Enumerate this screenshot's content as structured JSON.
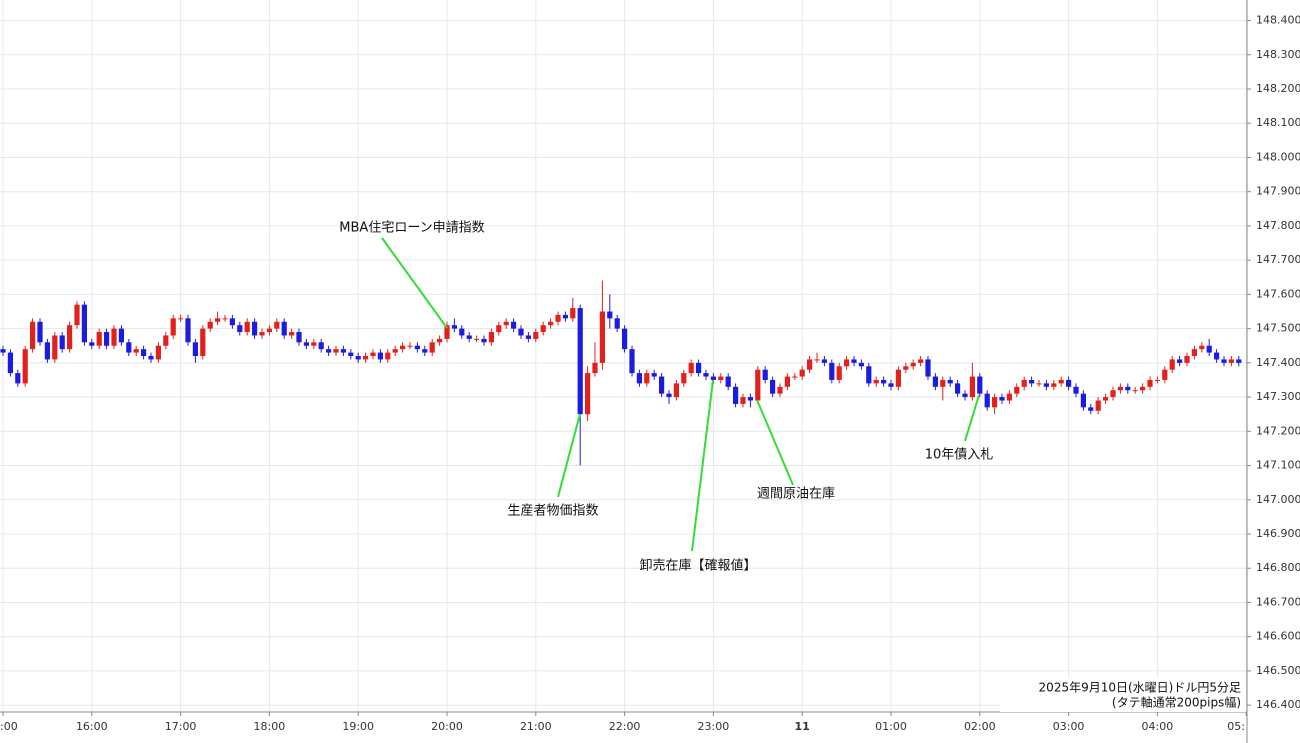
{
  "chart_data": {
    "type": "candlestick",
    "footer": [
      "2025年9月10日(水曜日)ドル円5分足",
      "(タテ軸通常200pips幅)"
    ],
    "annotations": [
      {
        "text": "MBA住宅ローン申請指数"
      },
      {
        "text": "生産者物価指数"
      },
      {
        "text": "卸売在庫【確報値】"
      },
      {
        "text": "週間原油在庫"
      },
      {
        "text": "10年債入札"
      }
    ],
    "up_color": "#e3211c",
    "down_color": "#1c1ce0",
    "annotation_color": "#33dd33",
    "grid": true,
    "ylim": [
      146.38,
      148.46
    ],
    "yticks": [
      {
        "value": 148.4,
        "label": "148.400"
      },
      {
        "value": 148.3,
        "label": "148.300"
      },
      {
        "value": 148.2,
        "label": "148.200"
      },
      {
        "value": 148.1,
        "label": "148.100"
      },
      {
        "value": 148.0,
        "label": "148.000"
      },
      {
        "value": 147.9,
        "label": "147.900"
      },
      {
        "value": 147.8,
        "label": "147.800"
      },
      {
        "value": 147.7,
        "label": "147.700"
      },
      {
        "value": 147.6,
        "label": "147.600"
      },
      {
        "value": 147.5,
        "label": "147.500"
      },
      {
        "value": 147.4,
        "label": "147.400"
      },
      {
        "value": 147.3,
        "label": "147.300"
      },
      {
        "value": 147.2,
        "label": "147.200"
      },
      {
        "value": 147.1,
        "label": "147.100"
      },
      {
        "value": 147.0,
        "label": "147.000"
      },
      {
        "value": 146.9,
        "label": "146.900"
      },
      {
        "value": 146.8,
        "label": "146.800"
      },
      {
        "value": 146.7,
        "label": "146.700"
      },
      {
        "value": 146.6,
        "label": "146.600"
      },
      {
        "value": 146.5,
        "label": "146.500"
      },
      {
        "value": 146.4,
        "label": "146.400"
      }
    ],
    "xticks": [
      {
        "value": "15:00",
        "label": ":00"
      },
      {
        "value": "16:00",
        "label": "16:00"
      },
      {
        "value": "17:00",
        "label": "17:00"
      },
      {
        "value": "18:00",
        "label": "18:00"
      },
      {
        "value": "19:00",
        "label": "19:00"
      },
      {
        "value": "20:00",
        "label": "20:00"
      },
      {
        "value": "21:00",
        "label": "21:00"
      },
      {
        "value": "22:00",
        "label": "22:00"
      },
      {
        "value": "23:00",
        "label": "23:00"
      },
      {
        "value": "00:00",
        "label": "11"
      },
      {
        "value": "01:00",
        "label": "01:00"
      },
      {
        "value": "02:00",
        "label": "02:00"
      },
      {
        "value": "03:00",
        "label": "03:00"
      },
      {
        "value": "04:00",
        "label": "04:00"
      },
      {
        "value": "05:00",
        "label": "05:"
      }
    ],
    "x": [
      "15:00",
      "15:05",
      "15:10",
      "15:15",
      "15:20",
      "15:25",
      "15:30",
      "15:35",
      "15:40",
      "15:45",
      "15:50",
      "15:55",
      "16:00",
      "16:05",
      "16:10",
      "16:15",
      "16:20",
      "16:25",
      "16:30",
      "16:35",
      "16:40",
      "16:45",
      "16:50",
      "16:55",
      "17:00",
      "17:05",
      "17:10",
      "17:15",
      "17:20",
      "17:25",
      "17:30",
      "17:35",
      "17:40",
      "17:45",
      "17:50",
      "17:55",
      "18:00",
      "18:05",
      "18:10",
      "18:15",
      "18:20",
      "18:25",
      "18:30",
      "18:35",
      "18:40",
      "18:45",
      "18:50",
      "18:55",
      "19:00",
      "19:05",
      "19:10",
      "19:15",
      "19:20",
      "19:25",
      "19:30",
      "19:35",
      "19:40",
      "19:45",
      "19:50",
      "19:55",
      "20:00",
      "20:05",
      "20:10",
      "20:15",
      "20:20",
      "20:25",
      "20:30",
      "20:35",
      "20:40",
      "20:45",
      "20:50",
      "20:55",
      "21:00",
      "21:05",
      "21:10",
      "21:15",
      "21:20",
      "21:25",
      "21:30",
      "21:35",
      "21:40",
      "21:45",
      "21:50",
      "21:55",
      "22:00",
      "22:05",
      "22:10",
      "22:15",
      "22:20",
      "22:25",
      "22:30",
      "22:35",
      "22:40",
      "22:45",
      "22:50",
      "22:55",
      "23:00",
      "23:05",
      "23:10",
      "23:15",
      "23:20",
      "23:25",
      "23:30",
      "23:35",
      "23:40",
      "23:45",
      "23:50",
      "23:55",
      "00:00",
      "00:05",
      "00:10",
      "00:15",
      "00:20",
      "00:25",
      "00:30",
      "00:35",
      "00:40",
      "00:45",
      "00:50",
      "00:55",
      "01:00",
      "01:05",
      "01:10",
      "01:15",
      "01:20",
      "01:25",
      "01:30",
      "01:35",
      "01:40",
      "01:45",
      "01:50",
      "01:55",
      "02:00",
      "02:05",
      "02:10",
      "02:15",
      "02:20",
      "02:25",
      "02:30",
      "02:35",
      "02:40",
      "02:45",
      "02:50",
      "02:55",
      "03:00",
      "03:05",
      "03:10",
      "03:15",
      "03:20",
      "03:25",
      "03:30",
      "03:35",
      "03:40",
      "03:45",
      "03:50",
      "03:55",
      "04:00",
      "04:05",
      "04:10",
      "04:15",
      "04:20",
      "04:25",
      "04:30",
      "04:35",
      "04:40",
      "04:45",
      "04:50",
      "04:55"
    ],
    "candles": [
      [
        147.44,
        147.45,
        147.42,
        147.43
      ],
      [
        147.43,
        147.44,
        147.36,
        147.37
      ],
      [
        147.37,
        147.38,
        147.33,
        147.34
      ],
      [
        147.34,
        147.45,
        147.33,
        147.44
      ],
      [
        147.44,
        147.53,
        147.43,
        147.52
      ],
      [
        147.52,
        147.53,
        147.45,
        147.46
      ],
      [
        147.46,
        147.47,
        147.4,
        147.41
      ],
      [
        147.41,
        147.49,
        147.4,
        147.48
      ],
      [
        147.48,
        147.49,
        147.43,
        147.44
      ],
      [
        147.44,
        147.52,
        147.43,
        147.51
      ],
      [
        147.51,
        147.58,
        147.5,
        147.57
      ],
      [
        147.57,
        147.58,
        147.45,
        147.46
      ],
      [
        147.46,
        147.47,
        147.44,
        147.45
      ],
      [
        147.45,
        147.5,
        147.44,
        147.49
      ],
      [
        147.49,
        147.5,
        147.44,
        147.45
      ],
      [
        147.45,
        147.51,
        147.44,
        147.5
      ],
      [
        147.5,
        147.51,
        147.45,
        147.46
      ],
      [
        147.46,
        147.47,
        147.42,
        147.43
      ],
      [
        147.43,
        147.45,
        147.42,
        147.44
      ],
      [
        147.44,
        147.45,
        147.41,
        147.42
      ],
      [
        147.42,
        147.43,
        147.4,
        147.41
      ],
      [
        147.41,
        147.46,
        147.4,
        147.45
      ],
      [
        147.45,
        147.49,
        147.44,
        147.48
      ],
      [
        147.48,
        147.54,
        147.47,
        147.53
      ],
      [
        147.53,
        147.54,
        147.52,
        147.53
      ],
      [
        147.53,
        147.54,
        147.45,
        147.46
      ],
      [
        147.46,
        147.47,
        147.4,
        147.42
      ],
      [
        147.42,
        147.51,
        147.41,
        147.5
      ],
      [
        147.5,
        147.53,
        147.49,
        147.52
      ],
      [
        147.52,
        147.55,
        147.51,
        147.53
      ],
      [
        147.53,
        147.54,
        147.52,
        147.53
      ],
      [
        147.53,
        147.54,
        147.5,
        147.51
      ],
      [
        147.51,
        147.52,
        147.48,
        147.49
      ],
      [
        147.49,
        147.53,
        147.48,
        147.52
      ],
      [
        147.52,
        147.53,
        147.47,
        147.48
      ],
      [
        147.48,
        147.5,
        147.47,
        147.49
      ],
      [
        147.49,
        147.51,
        147.48,
        147.5
      ],
      [
        147.5,
        147.53,
        147.49,
        147.52
      ],
      [
        147.52,
        147.53,
        147.47,
        147.48
      ],
      [
        147.48,
        147.5,
        147.47,
        147.49
      ],
      [
        147.49,
        147.5,
        147.45,
        147.46
      ],
      [
        147.46,
        147.47,
        147.44,
        147.45
      ],
      [
        147.45,
        147.47,
        147.44,
        147.46
      ],
      [
        147.46,
        147.47,
        147.43,
        147.44
      ],
      [
        147.44,
        147.45,
        147.42,
        147.43
      ],
      [
        147.43,
        147.45,
        147.42,
        147.44
      ],
      [
        147.44,
        147.45,
        147.42,
        147.43
      ],
      [
        147.43,
        147.44,
        147.41,
        147.42
      ],
      [
        147.42,
        147.43,
        147.4,
        147.41
      ],
      [
        147.41,
        147.43,
        147.4,
        147.42
      ],
      [
        147.42,
        147.44,
        147.41,
        147.43
      ],
      [
        147.43,
        147.44,
        147.4,
        147.41
      ],
      [
        147.41,
        147.44,
        147.4,
        147.43
      ],
      [
        147.43,
        147.45,
        147.42,
        147.44
      ],
      [
        147.44,
        147.46,
        147.43,
        147.45
      ],
      [
        147.45,
        147.46,
        147.44,
        147.45
      ],
      [
        147.45,
        147.46,
        147.43,
        147.44
      ],
      [
        147.44,
        147.45,
        147.42,
        147.43
      ],
      [
        147.43,
        147.47,
        147.42,
        147.46
      ],
      [
        147.46,
        147.48,
        147.45,
        147.47
      ],
      [
        147.47,
        147.52,
        147.46,
        147.51
      ],
      [
        147.51,
        147.53,
        147.49,
        147.5
      ],
      [
        147.5,
        147.51,
        147.47,
        147.48
      ],
      [
        147.48,
        147.49,
        147.46,
        147.47
      ],
      [
        147.47,
        147.48,
        147.46,
        147.47
      ],
      [
        147.47,
        147.48,
        147.45,
        147.46
      ],
      [
        147.46,
        147.5,
        147.45,
        147.49
      ],
      [
        147.49,
        147.52,
        147.48,
        147.51
      ],
      [
        147.51,
        147.53,
        147.5,
        147.52
      ],
      [
        147.52,
        147.53,
        147.49,
        147.5
      ],
      [
        147.5,
        147.51,
        147.47,
        147.48
      ],
      [
        147.48,
        147.49,
        147.46,
        147.47
      ],
      [
        147.47,
        147.5,
        147.46,
        147.49
      ],
      [
        147.49,
        147.52,
        147.48,
        147.51
      ],
      [
        147.51,
        147.53,
        147.5,
        147.52
      ],
      [
        147.52,
        147.55,
        147.51,
        147.54
      ],
      [
        147.54,
        147.55,
        147.52,
        147.53
      ],
      [
        147.53,
        147.59,
        147.52,
        147.56
      ],
      [
        147.56,
        147.57,
        147.1,
        147.25
      ],
      [
        147.25,
        147.39,
        147.23,
        147.37
      ],
      [
        147.37,
        147.46,
        147.36,
        147.4
      ],
      [
        147.4,
        147.64,
        147.38,
        147.55
      ],
      [
        147.55,
        147.6,
        147.5,
        147.53
      ],
      [
        147.53,
        147.54,
        147.49,
        147.5
      ],
      [
        147.5,
        147.51,
        147.43,
        147.44
      ],
      [
        147.44,
        147.45,
        147.36,
        147.37
      ],
      [
        147.37,
        147.38,
        147.33,
        147.34
      ],
      [
        147.34,
        147.38,
        147.33,
        147.37
      ],
      [
        147.37,
        147.38,
        147.35,
        147.36
      ],
      [
        147.36,
        147.37,
        147.3,
        147.31
      ],
      [
        147.31,
        147.32,
        147.28,
        147.3
      ],
      [
        147.3,
        147.35,
        147.29,
        147.34
      ],
      [
        147.34,
        147.38,
        147.33,
        147.37
      ],
      [
        147.37,
        147.41,
        147.36,
        147.4
      ],
      [
        147.4,
        147.41,
        147.36,
        147.37
      ],
      [
        147.37,
        147.38,
        147.35,
        147.36
      ],
      [
        147.36,
        147.37,
        147.34,
        147.35
      ],
      [
        147.35,
        147.37,
        147.34,
        147.36
      ],
      [
        147.36,
        147.37,
        147.32,
        147.33
      ],
      [
        147.33,
        147.34,
        147.27,
        147.28
      ],
      [
        147.28,
        147.31,
        147.27,
        147.3
      ],
      [
        147.3,
        147.31,
        147.27,
        147.29
      ],
      [
        147.29,
        147.39,
        147.28,
        147.38
      ],
      [
        147.38,
        147.39,
        147.34,
        147.35
      ],
      [
        147.35,
        147.36,
        147.3,
        147.31
      ],
      [
        147.31,
        147.34,
        147.3,
        147.33
      ],
      [
        147.33,
        147.37,
        147.32,
        147.36
      ],
      [
        147.36,
        147.37,
        147.35,
        147.36
      ],
      [
        147.36,
        147.39,
        147.35,
        147.38
      ],
      [
        147.38,
        147.42,
        147.37,
        147.41
      ],
      [
        147.41,
        147.43,
        147.4,
        147.41
      ],
      [
        147.41,
        147.42,
        147.39,
        147.4
      ],
      [
        147.4,
        147.41,
        147.34,
        147.35
      ],
      [
        147.35,
        147.4,
        147.34,
        147.39
      ],
      [
        147.39,
        147.42,
        147.38,
        147.41
      ],
      [
        147.41,
        147.42,
        147.39,
        147.4
      ],
      [
        147.4,
        147.41,
        147.38,
        147.39
      ],
      [
        147.39,
        147.4,
        147.33,
        147.34
      ],
      [
        147.34,
        147.36,
        147.33,
        147.35
      ],
      [
        147.35,
        147.36,
        147.33,
        147.34
      ],
      [
        147.34,
        147.35,
        147.32,
        147.33
      ],
      [
        147.33,
        147.39,
        147.32,
        147.38
      ],
      [
        147.38,
        147.4,
        147.37,
        147.39
      ],
      [
        147.39,
        147.41,
        147.38,
        147.4
      ],
      [
        147.4,
        147.42,
        147.39,
        147.41
      ],
      [
        147.41,
        147.42,
        147.35,
        147.36
      ],
      [
        147.36,
        147.37,
        147.32,
        147.33
      ],
      [
        147.33,
        147.36,
        147.29,
        147.35
      ],
      [
        147.35,
        147.36,
        147.33,
        147.34
      ],
      [
        147.34,
        147.35,
        147.3,
        147.31
      ],
      [
        147.31,
        147.32,
        147.29,
        147.3
      ],
      [
        147.3,
        147.4,
        147.29,
        147.36
      ],
      [
        147.36,
        147.37,
        147.3,
        147.31
      ],
      [
        147.31,
        147.32,
        147.26,
        147.27
      ],
      [
        147.27,
        147.31,
        147.25,
        147.3
      ],
      [
        147.3,
        147.31,
        147.28,
        147.29
      ],
      [
        147.29,
        147.32,
        147.28,
        147.31
      ],
      [
        147.31,
        147.34,
        147.3,
        147.33
      ],
      [
        147.33,
        147.36,
        147.32,
        147.35
      ],
      [
        147.35,
        147.36,
        147.33,
        147.34
      ],
      [
        147.34,
        147.35,
        147.33,
        147.34
      ],
      [
        147.34,
        147.35,
        147.32,
        147.33
      ],
      [
        147.33,
        147.35,
        147.32,
        147.34
      ],
      [
        147.34,
        147.36,
        147.33,
        147.35
      ],
      [
        147.35,
        147.36,
        147.32,
        147.33
      ],
      [
        147.33,
        147.34,
        147.3,
        147.31
      ],
      [
        147.31,
        147.32,
        147.26,
        147.27
      ],
      [
        147.27,
        147.28,
        147.25,
        147.26
      ],
      [
        147.26,
        147.3,
        147.25,
        147.29
      ],
      [
        147.29,
        147.31,
        147.28,
        147.3
      ],
      [
        147.3,
        147.33,
        147.29,
        147.32
      ],
      [
        147.32,
        147.34,
        147.31,
        147.33
      ],
      [
        147.33,
        147.34,
        147.31,
        147.32
      ],
      [
        147.32,
        147.33,
        147.31,
        147.32
      ],
      [
        147.32,
        147.34,
        147.31,
        147.33
      ],
      [
        147.33,
        147.36,
        147.32,
        147.35
      ],
      [
        147.35,
        147.36,
        147.34,
        147.35
      ],
      [
        147.35,
        147.39,
        147.34,
        147.38
      ],
      [
        147.38,
        147.42,
        147.37,
        147.41
      ],
      [
        147.41,
        147.42,
        147.39,
        147.4
      ],
      [
        147.4,
        147.43,
        147.39,
        147.42
      ],
      [
        147.42,
        147.45,
        147.41,
        147.44
      ],
      [
        147.44,
        147.46,
        147.43,
        147.45
      ],
      [
        147.45,
        147.47,
        147.42,
        147.43
      ],
      [
        147.43,
        147.44,
        147.4,
        147.41
      ],
      [
        147.41,
        147.42,
        147.39,
        147.4
      ],
      [
        147.4,
        147.42,
        147.39,
        147.41
      ],
      [
        147.41,
        147.42,
        147.39,
        147.4
      ]
    ]
  }
}
